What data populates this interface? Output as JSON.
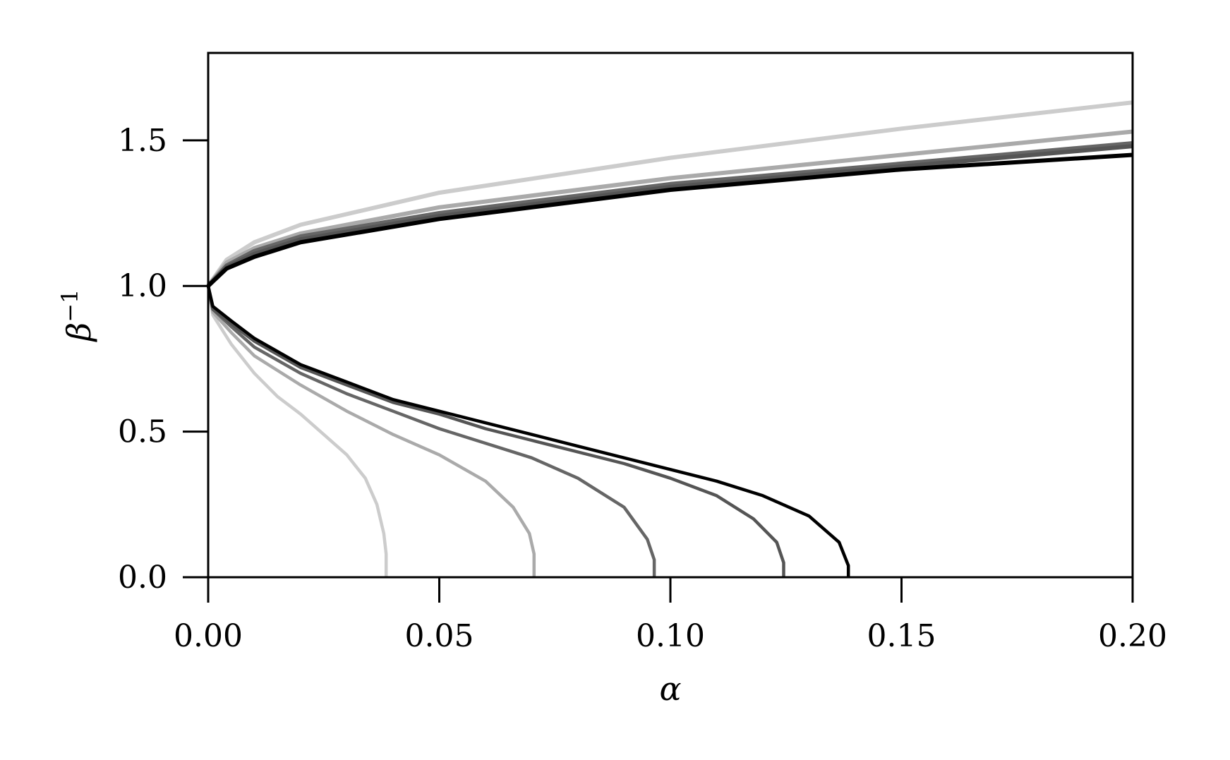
{
  "chart_data": {
    "type": "line",
    "xlabel": "α",
    "ylabel_base": "β",
    "ylabel_sup": "−1",
    "xlim": [
      0,
      0.2
    ],
    "ylim": [
      0,
      1.8
    ],
    "grid": false,
    "x_ticks": [
      0,
      0.05,
      0.1,
      0.15,
      0.2
    ],
    "x_tick_labels": [
      "0.00",
      "0.05",
      "0.10",
      "0.15",
      "0.20"
    ],
    "y_ticks": [
      0,
      0.5,
      1.0,
      1.5
    ],
    "y_tick_labels": [
      "0.0",
      "0.5",
      "1.0",
      "1.5"
    ],
    "series": [
      {
        "color": "#cccccc",
        "upper": [
          [
            0,
            1.0
          ],
          [
            0.004,
            1.09
          ],
          [
            0.01,
            1.15
          ],
          [
            0.02,
            1.21
          ],
          [
            0.05,
            1.32
          ],
          [
            0.1,
            1.44
          ],
          [
            0.15,
            1.54
          ],
          [
            0.2,
            1.63
          ]
        ],
        "lower": [
          [
            0,
            1.0
          ],
          [
            0.001,
            0.9
          ],
          [
            0.005,
            0.8
          ],
          [
            0.01,
            0.7
          ],
          [
            0.015,
            0.62
          ],
          [
            0.02,
            0.56
          ],
          [
            0.025,
            0.49
          ],
          [
            0.03,
            0.42
          ],
          [
            0.034,
            0.34
          ],
          [
            0.0365,
            0.25
          ],
          [
            0.038,
            0.15
          ],
          [
            0.0385,
            0.08
          ],
          [
            0.0385,
            0.0
          ]
        ]
      },
      {
        "color": "#aaaaaa",
        "upper": [
          [
            0,
            1.0
          ],
          [
            0.004,
            1.08
          ],
          [
            0.01,
            1.13
          ],
          [
            0.02,
            1.18
          ],
          [
            0.05,
            1.27
          ],
          [
            0.1,
            1.37
          ],
          [
            0.15,
            1.45
          ],
          [
            0.2,
            1.53
          ]
        ],
        "lower": [
          [
            0,
            1.0
          ],
          [
            0.001,
            0.91
          ],
          [
            0.005,
            0.84
          ],
          [
            0.01,
            0.76
          ],
          [
            0.02,
            0.66
          ],
          [
            0.03,
            0.57
          ],
          [
            0.04,
            0.49
          ],
          [
            0.05,
            0.42
          ],
          [
            0.06,
            0.33
          ],
          [
            0.066,
            0.24
          ],
          [
            0.0695,
            0.15
          ],
          [
            0.0705,
            0.08
          ],
          [
            0.0705,
            0.0
          ]
        ]
      },
      {
        "color": "#666666",
        "upper": [
          [
            0,
            1.0
          ],
          [
            0.004,
            1.07
          ],
          [
            0.01,
            1.12
          ],
          [
            0.02,
            1.17
          ],
          [
            0.05,
            1.25
          ],
          [
            0.1,
            1.35
          ],
          [
            0.15,
            1.42
          ],
          [
            0.2,
            1.49
          ]
        ],
        "lower": [
          [
            0,
            1.0
          ],
          [
            0.001,
            0.92
          ],
          [
            0.005,
            0.86
          ],
          [
            0.01,
            0.79
          ],
          [
            0.02,
            0.7
          ],
          [
            0.03,
            0.63
          ],
          [
            0.04,
            0.57
          ],
          [
            0.05,
            0.51
          ],
          [
            0.06,
            0.46
          ],
          [
            0.07,
            0.41
          ],
          [
            0.08,
            0.34
          ],
          [
            0.09,
            0.24
          ],
          [
            0.095,
            0.13
          ],
          [
            0.0965,
            0.06
          ],
          [
            0.0965,
            0.0
          ]
        ]
      },
      {
        "color": "#555555",
        "upper": [
          [
            0,
            1.0
          ],
          [
            0.004,
            1.065
          ],
          [
            0.01,
            1.11
          ],
          [
            0.02,
            1.16
          ],
          [
            0.05,
            1.24
          ],
          [
            0.1,
            1.34
          ],
          [
            0.15,
            1.41
          ],
          [
            0.2,
            1.48
          ]
        ],
        "lower": [
          [
            0,
            1.0
          ],
          [
            0.001,
            0.92
          ],
          [
            0.005,
            0.87
          ],
          [
            0.01,
            0.81
          ],
          [
            0.02,
            0.72
          ],
          [
            0.03,
            0.66
          ],
          [
            0.04,
            0.6
          ],
          [
            0.05,
            0.56
          ],
          [
            0.06,
            0.51
          ],
          [
            0.07,
            0.47
          ],
          [
            0.08,
            0.43
          ],
          [
            0.09,
            0.39
          ],
          [
            0.1,
            0.34
          ],
          [
            0.11,
            0.28
          ],
          [
            0.118,
            0.2
          ],
          [
            0.123,
            0.12
          ],
          [
            0.1245,
            0.05
          ],
          [
            0.1245,
            0.0
          ]
        ]
      },
      {
        "color": "#000000",
        "upper": [
          [
            0,
            1.0
          ],
          [
            0.004,
            1.06
          ],
          [
            0.01,
            1.1
          ],
          [
            0.02,
            1.15
          ],
          [
            0.05,
            1.23
          ],
          [
            0.1,
            1.33
          ],
          [
            0.15,
            1.4
          ],
          [
            0.2,
            1.45
          ]
        ],
        "lower": [
          [
            0,
            1.0
          ],
          [
            0.001,
            0.93
          ],
          [
            0.005,
            0.88
          ],
          [
            0.01,
            0.82
          ],
          [
            0.02,
            0.73
          ],
          [
            0.03,
            0.67
          ],
          [
            0.04,
            0.61
          ],
          [
            0.05,
            0.57
          ],
          [
            0.06,
            0.53
          ],
          [
            0.07,
            0.49
          ],
          [
            0.08,
            0.45
          ],
          [
            0.09,
            0.41
          ],
          [
            0.1,
            0.37
          ],
          [
            0.11,
            0.33
          ],
          [
            0.12,
            0.28
          ],
          [
            0.13,
            0.21
          ],
          [
            0.1365,
            0.12
          ],
          [
            0.1385,
            0.04
          ],
          [
            0.1385,
            0.0
          ]
        ]
      }
    ]
  }
}
